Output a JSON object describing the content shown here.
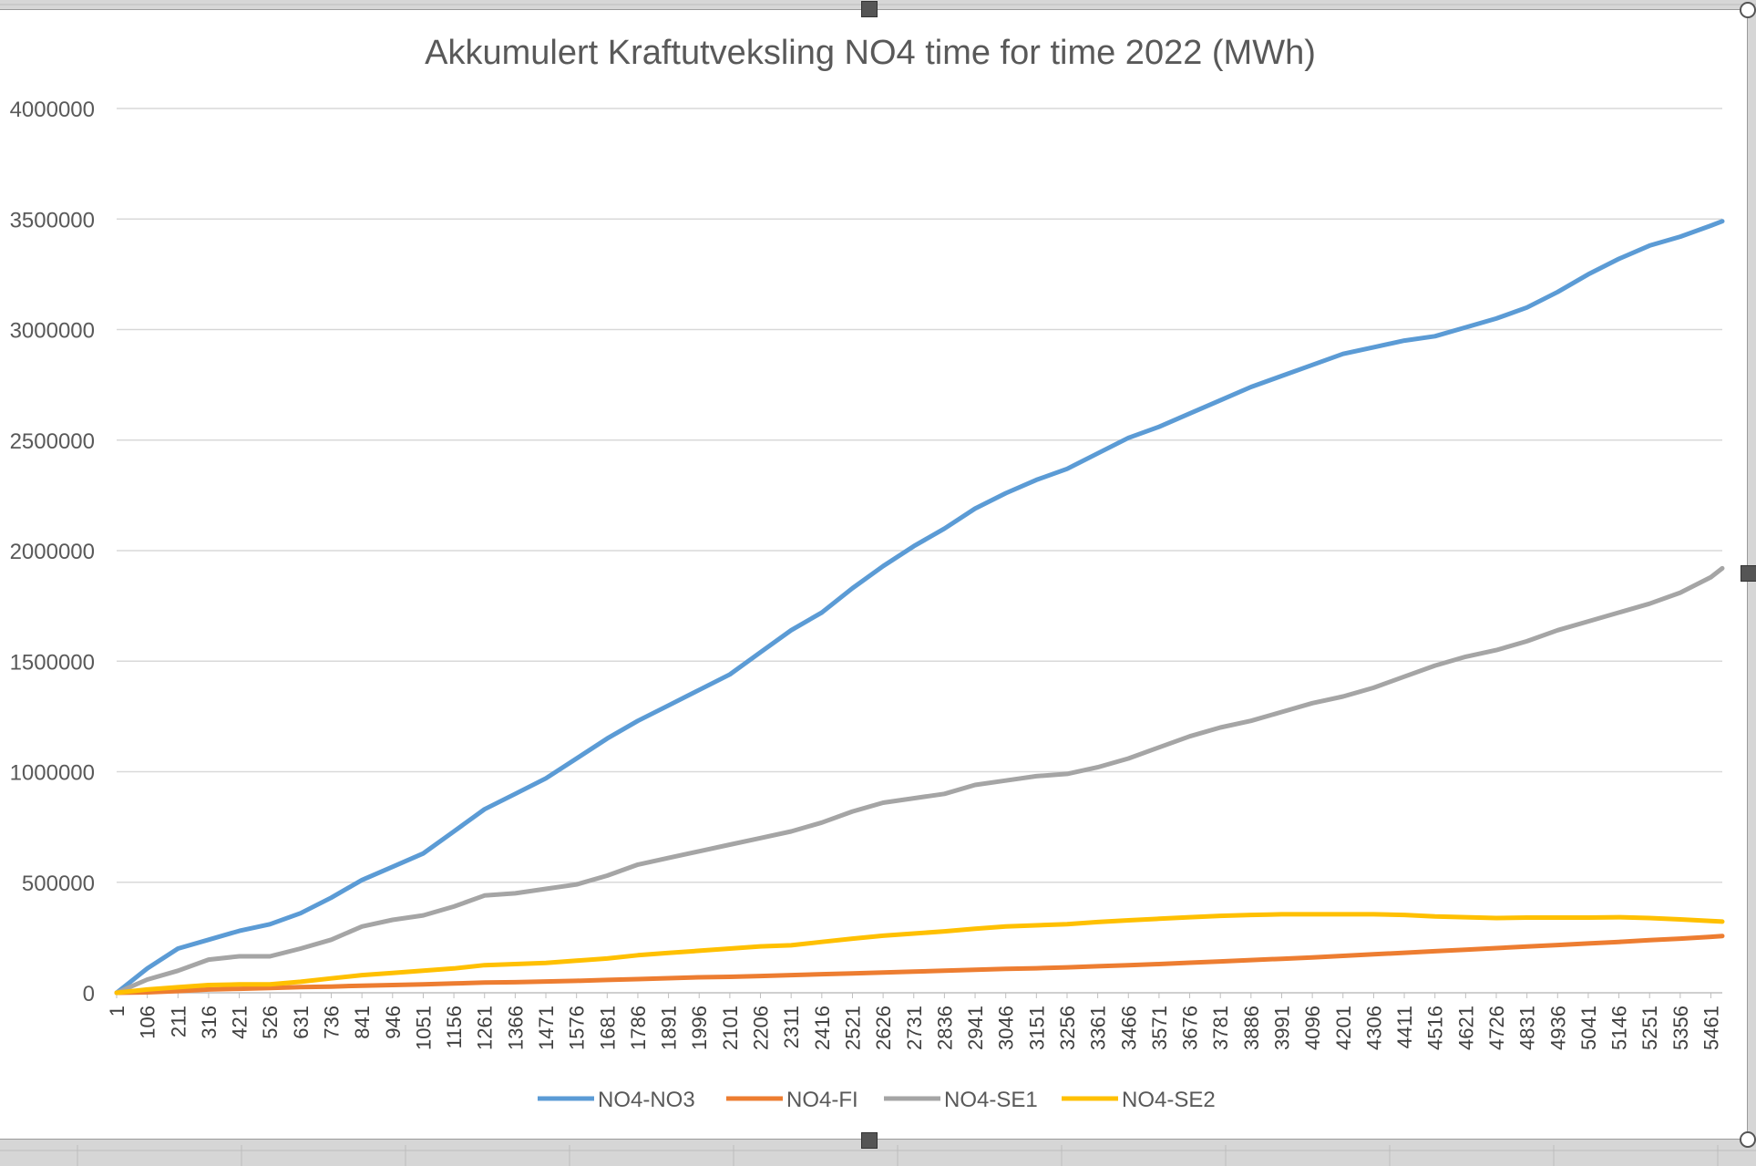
{
  "chart_data": {
    "type": "line",
    "title": "Akkumulert Kraftutveksling NO4 time for time 2022 (MWh)",
    "xlabel": "",
    "ylabel": "",
    "ylim": [
      0,
      4000000
    ],
    "xlim": [
      1,
      5500
    ],
    "y_ticks": [
      0,
      500000,
      1000000,
      1500000,
      2000000,
      2500000,
      3000000,
      3500000,
      4000000
    ],
    "y_tick_labels": [
      "0",
      "500000",
      "1000000",
      "1500000",
      "2000000",
      "2500000",
      "3000000",
      "3500000",
      "4000000"
    ],
    "x_tick_labels": [
      "1",
      "106",
      "211",
      "316",
      "421",
      "526",
      "631",
      "736",
      "841",
      "946",
      "1051",
      "1156",
      "1261",
      "1366",
      "1471",
      "1576",
      "1681",
      "1786",
      "1891",
      "1996",
      "2101",
      "2206",
      "2311",
      "2416",
      "2521",
      "2626",
      "2731",
      "2836",
      "2941",
      "3046",
      "3151",
      "3256",
      "3361",
      "3466",
      "3571",
      "3676",
      "3781",
      "3886",
      "3991",
      "4096",
      "4201",
      "4306",
      "4411",
      "4516",
      "4621",
      "4726",
      "4831",
      "4936",
      "5041",
      "5146",
      "5251",
      "5356",
      "5461"
    ],
    "grid": "horizontal",
    "legend_position": "bottom",
    "series": [
      {
        "name": "NO4-NO3",
        "color": "#5B9BD5",
        "x": [
          1,
          106,
          211,
          316,
          421,
          526,
          631,
          736,
          841,
          946,
          1051,
          1156,
          1261,
          1366,
          1471,
          1576,
          1681,
          1786,
          1891,
          1996,
          2101,
          2206,
          2311,
          2416,
          2521,
          2626,
          2731,
          2836,
          2941,
          3046,
          3151,
          3256,
          3361,
          3466,
          3571,
          3676,
          3781,
          3886,
          3991,
          4096,
          4201,
          4306,
          4411,
          4516,
          4621,
          4726,
          4831,
          4936,
          5041,
          5146,
          5251,
          5356,
          5461,
          5500
        ],
        "values": [
          0,
          110000,
          200000,
          240000,
          280000,
          310000,
          360000,
          430000,
          510000,
          570000,
          630000,
          730000,
          830000,
          900000,
          970000,
          1060000,
          1150000,
          1230000,
          1300000,
          1370000,
          1440000,
          1540000,
          1640000,
          1720000,
          1830000,
          1930000,
          2020000,
          2100000,
          2190000,
          2260000,
          2320000,
          2370000,
          2440000,
          2510000,
          2560000,
          2620000,
          2680000,
          2740000,
          2790000,
          2840000,
          2890000,
          2920000,
          2950000,
          2970000,
          3010000,
          3050000,
          3100000,
          3170000,
          3250000,
          3320000,
          3380000,
          3420000,
          3470000,
          3490000
        ]
      },
      {
        "name": "NO4-FI",
        "color": "#ED7D31",
        "x": [
          1,
          106,
          211,
          316,
          421,
          526,
          631,
          736,
          841,
          946,
          1051,
          1156,
          1261,
          1366,
          1471,
          1576,
          1681,
          1786,
          1891,
          1996,
          2101,
          2206,
          2311,
          2416,
          2521,
          2626,
          2731,
          2836,
          2941,
          3046,
          3151,
          3256,
          3361,
          3466,
          3571,
          3676,
          3781,
          3886,
          3991,
          4096,
          4201,
          4306,
          4411,
          4516,
          4621,
          4726,
          4831,
          4936,
          5041,
          5146,
          5251,
          5356,
          5461,
          5500
        ],
        "values": [
          0,
          2000,
          8000,
          15000,
          18000,
          22000,
          26000,
          28000,
          32000,
          35000,
          38000,
          42000,
          46000,
          48000,
          51000,
          54000,
          58000,
          62000,
          66000,
          70000,
          72000,
          76000,
          80000,
          84000,
          88000,
          92000,
          96000,
          100000,
          104000,
          108000,
          111000,
          115000,
          120000,
          125000,
          130000,
          136000,
          142000,
          148000,
          154000,
          160000,
          167000,
          174000,
          181000,
          188000,
          195000,
          202000,
          209000,
          216000,
          223000,
          230000,
          238000,
          245000,
          253000,
          257000
        ]
      },
      {
        "name": "NO4-SE1",
        "color": "#A5A5A5",
        "x": [
          1,
          106,
          211,
          316,
          421,
          526,
          631,
          736,
          841,
          946,
          1051,
          1156,
          1261,
          1366,
          1471,
          1576,
          1681,
          1786,
          1891,
          1996,
          2101,
          2206,
          2311,
          2416,
          2521,
          2626,
          2731,
          2836,
          2941,
          3046,
          3151,
          3256,
          3361,
          3466,
          3571,
          3676,
          3781,
          3886,
          3991,
          4096,
          4201,
          4306,
          4411,
          4516,
          4621,
          4726,
          4831,
          4936,
          5041,
          5146,
          5251,
          5356,
          5461,
          5500
        ],
        "values": [
          0,
          60000,
          100000,
          150000,
          165000,
          165000,
          200000,
          240000,
          300000,
          330000,
          350000,
          390000,
          440000,
          450000,
          470000,
          490000,
          530000,
          580000,
          610000,
          640000,
          670000,
          700000,
          730000,
          770000,
          820000,
          860000,
          880000,
          900000,
          940000,
          960000,
          980000,
          990000,
          1020000,
          1060000,
          1110000,
          1160000,
          1200000,
          1230000,
          1270000,
          1310000,
          1340000,
          1380000,
          1430000,
          1480000,
          1520000,
          1550000,
          1590000,
          1640000,
          1680000,
          1720000,
          1760000,
          1810000,
          1880000,
          1920000
        ]
      },
      {
        "name": "NO4-SE2",
        "color": "#FFC000",
        "x": [
          1,
          106,
          211,
          316,
          421,
          526,
          631,
          736,
          841,
          946,
          1051,
          1156,
          1261,
          1366,
          1471,
          1576,
          1681,
          1786,
          1891,
          1996,
          2101,
          2206,
          2311,
          2416,
          2521,
          2626,
          2731,
          2836,
          2941,
          3046,
          3151,
          3256,
          3361,
          3466,
          3571,
          3676,
          3781,
          3886,
          3991,
          4096,
          4201,
          4306,
          4411,
          4516,
          4621,
          4726,
          4831,
          4936,
          5041,
          5146,
          5251,
          5356,
          5461,
          5500
        ],
        "values": [
          0,
          15000,
          25000,
          35000,
          38000,
          38000,
          50000,
          65000,
          80000,
          90000,
          100000,
          110000,
          125000,
          130000,
          135000,
          145000,
          155000,
          170000,
          180000,
          190000,
          200000,
          210000,
          215000,
          230000,
          245000,
          258000,
          268000,
          278000,
          290000,
          300000,
          305000,
          310000,
          320000,
          328000,
          335000,
          342000,
          348000,
          352000,
          355000,
          355000,
          355000,
          355000,
          352000,
          345000,
          342000,
          338000,
          340000,
          340000,
          340000,
          342000,
          338000,
          332000,
          325000,
          322000
        ]
      }
    ]
  }
}
